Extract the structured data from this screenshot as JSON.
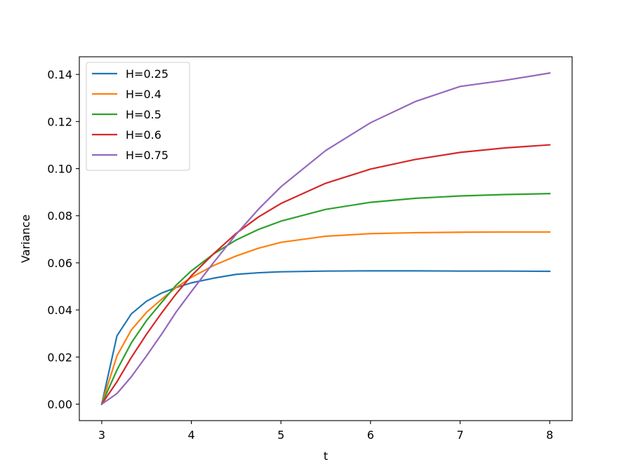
{
  "chart_data": {
    "type": "line",
    "title": "",
    "xlabel": "t",
    "ylabel": "Variance",
    "xlim": [
      2.75,
      8.25
    ],
    "ylim": [
      -0.007,
      0.1475
    ],
    "xticks": [
      3,
      4,
      5,
      6,
      7,
      8
    ],
    "xtick_labels": [
      "3",
      "4",
      "5",
      "6",
      "7",
      "8"
    ],
    "yticks": [
      0.0,
      0.02,
      0.04,
      0.06,
      0.08,
      0.1,
      0.12,
      0.14
    ],
    "ytick_labels": [
      "0.00",
      "0.02",
      "0.04",
      "0.06",
      "0.08",
      "0.10",
      "0.12",
      "0.14"
    ],
    "grid": false,
    "legend_position": "top-left",
    "series": [
      {
        "name": "H=0.25",
        "color": "#1f77b4",
        "x": [
          3.0,
          3.17,
          3.33,
          3.5,
          3.67,
          3.83,
          4.0,
          4.25,
          4.5,
          4.75,
          5.0,
          5.5,
          6.0,
          6.5,
          7.0,
          7.5,
          8.0
        ],
        "y": [
          0.0,
          0.029,
          0.0383,
          0.0437,
          0.0472,
          0.0495,
          0.0515,
          0.0535,
          0.0551,
          0.0558,
          0.0562,
          0.0565,
          0.0566,
          0.0566,
          0.0565,
          0.0565,
          0.0564
        ]
      },
      {
        "name": "H=0.4",
        "color": "#ff7f0e",
        "x": [
          3.0,
          3.17,
          3.33,
          3.5,
          3.67,
          3.83,
          4.0,
          4.25,
          4.5,
          4.75,
          5.0,
          5.5,
          6.0,
          6.5,
          7.0,
          7.5,
          8.0
        ],
        "y": [
          0.0,
          0.0205,
          0.0315,
          0.039,
          0.0446,
          0.0495,
          0.0538,
          0.0589,
          0.0629,
          0.0662,
          0.0687,
          0.0713,
          0.0724,
          0.0728,
          0.073,
          0.0731,
          0.0731
        ]
      },
      {
        "name": "H=0.5",
        "color": "#2ca02c",
        "x": [
          3.0,
          3.17,
          3.33,
          3.5,
          3.67,
          3.83,
          4.0,
          4.25,
          4.5,
          4.75,
          5.0,
          5.5,
          6.0,
          6.5,
          7.0,
          7.5,
          8.0
        ],
        "y": [
          0.0,
          0.0145,
          0.026,
          0.0355,
          0.0433,
          0.0505,
          0.0566,
          0.0638,
          0.0697,
          0.0742,
          0.0777,
          0.0827,
          0.0857,
          0.0874,
          0.0884,
          0.089,
          0.0894
        ]
      },
      {
        "name": "H=0.6",
        "color": "#d62728",
        "x": [
          3.0,
          3.17,
          3.33,
          3.5,
          3.67,
          3.83,
          4.0,
          4.25,
          4.5,
          4.75,
          5.0,
          5.5,
          6.0,
          6.5,
          7.0,
          7.5,
          8.0
        ],
        "y": [
          0.0,
          0.0095,
          0.0198,
          0.0297,
          0.0388,
          0.0468,
          0.0545,
          0.0639,
          0.0725,
          0.0795,
          0.0852,
          0.0938,
          0.0998,
          0.1039,
          0.1069,
          0.1088,
          0.1101
        ]
      },
      {
        "name": "H=0.75",
        "color": "#9467bd",
        "x": [
          3.0,
          3.17,
          3.33,
          3.5,
          3.67,
          3.83,
          4.0,
          4.25,
          4.5,
          4.75,
          5.0,
          5.5,
          6.0,
          6.5,
          7.0,
          7.5,
          8.0
        ],
        "y": [
          0.0,
          0.0045,
          0.0116,
          0.0205,
          0.0298,
          0.0391,
          0.0478,
          0.0602,
          0.0721,
          0.0828,
          0.0923,
          0.1077,
          0.1195,
          0.1285,
          0.1349,
          0.1375,
          0.1406
        ]
      }
    ]
  }
}
